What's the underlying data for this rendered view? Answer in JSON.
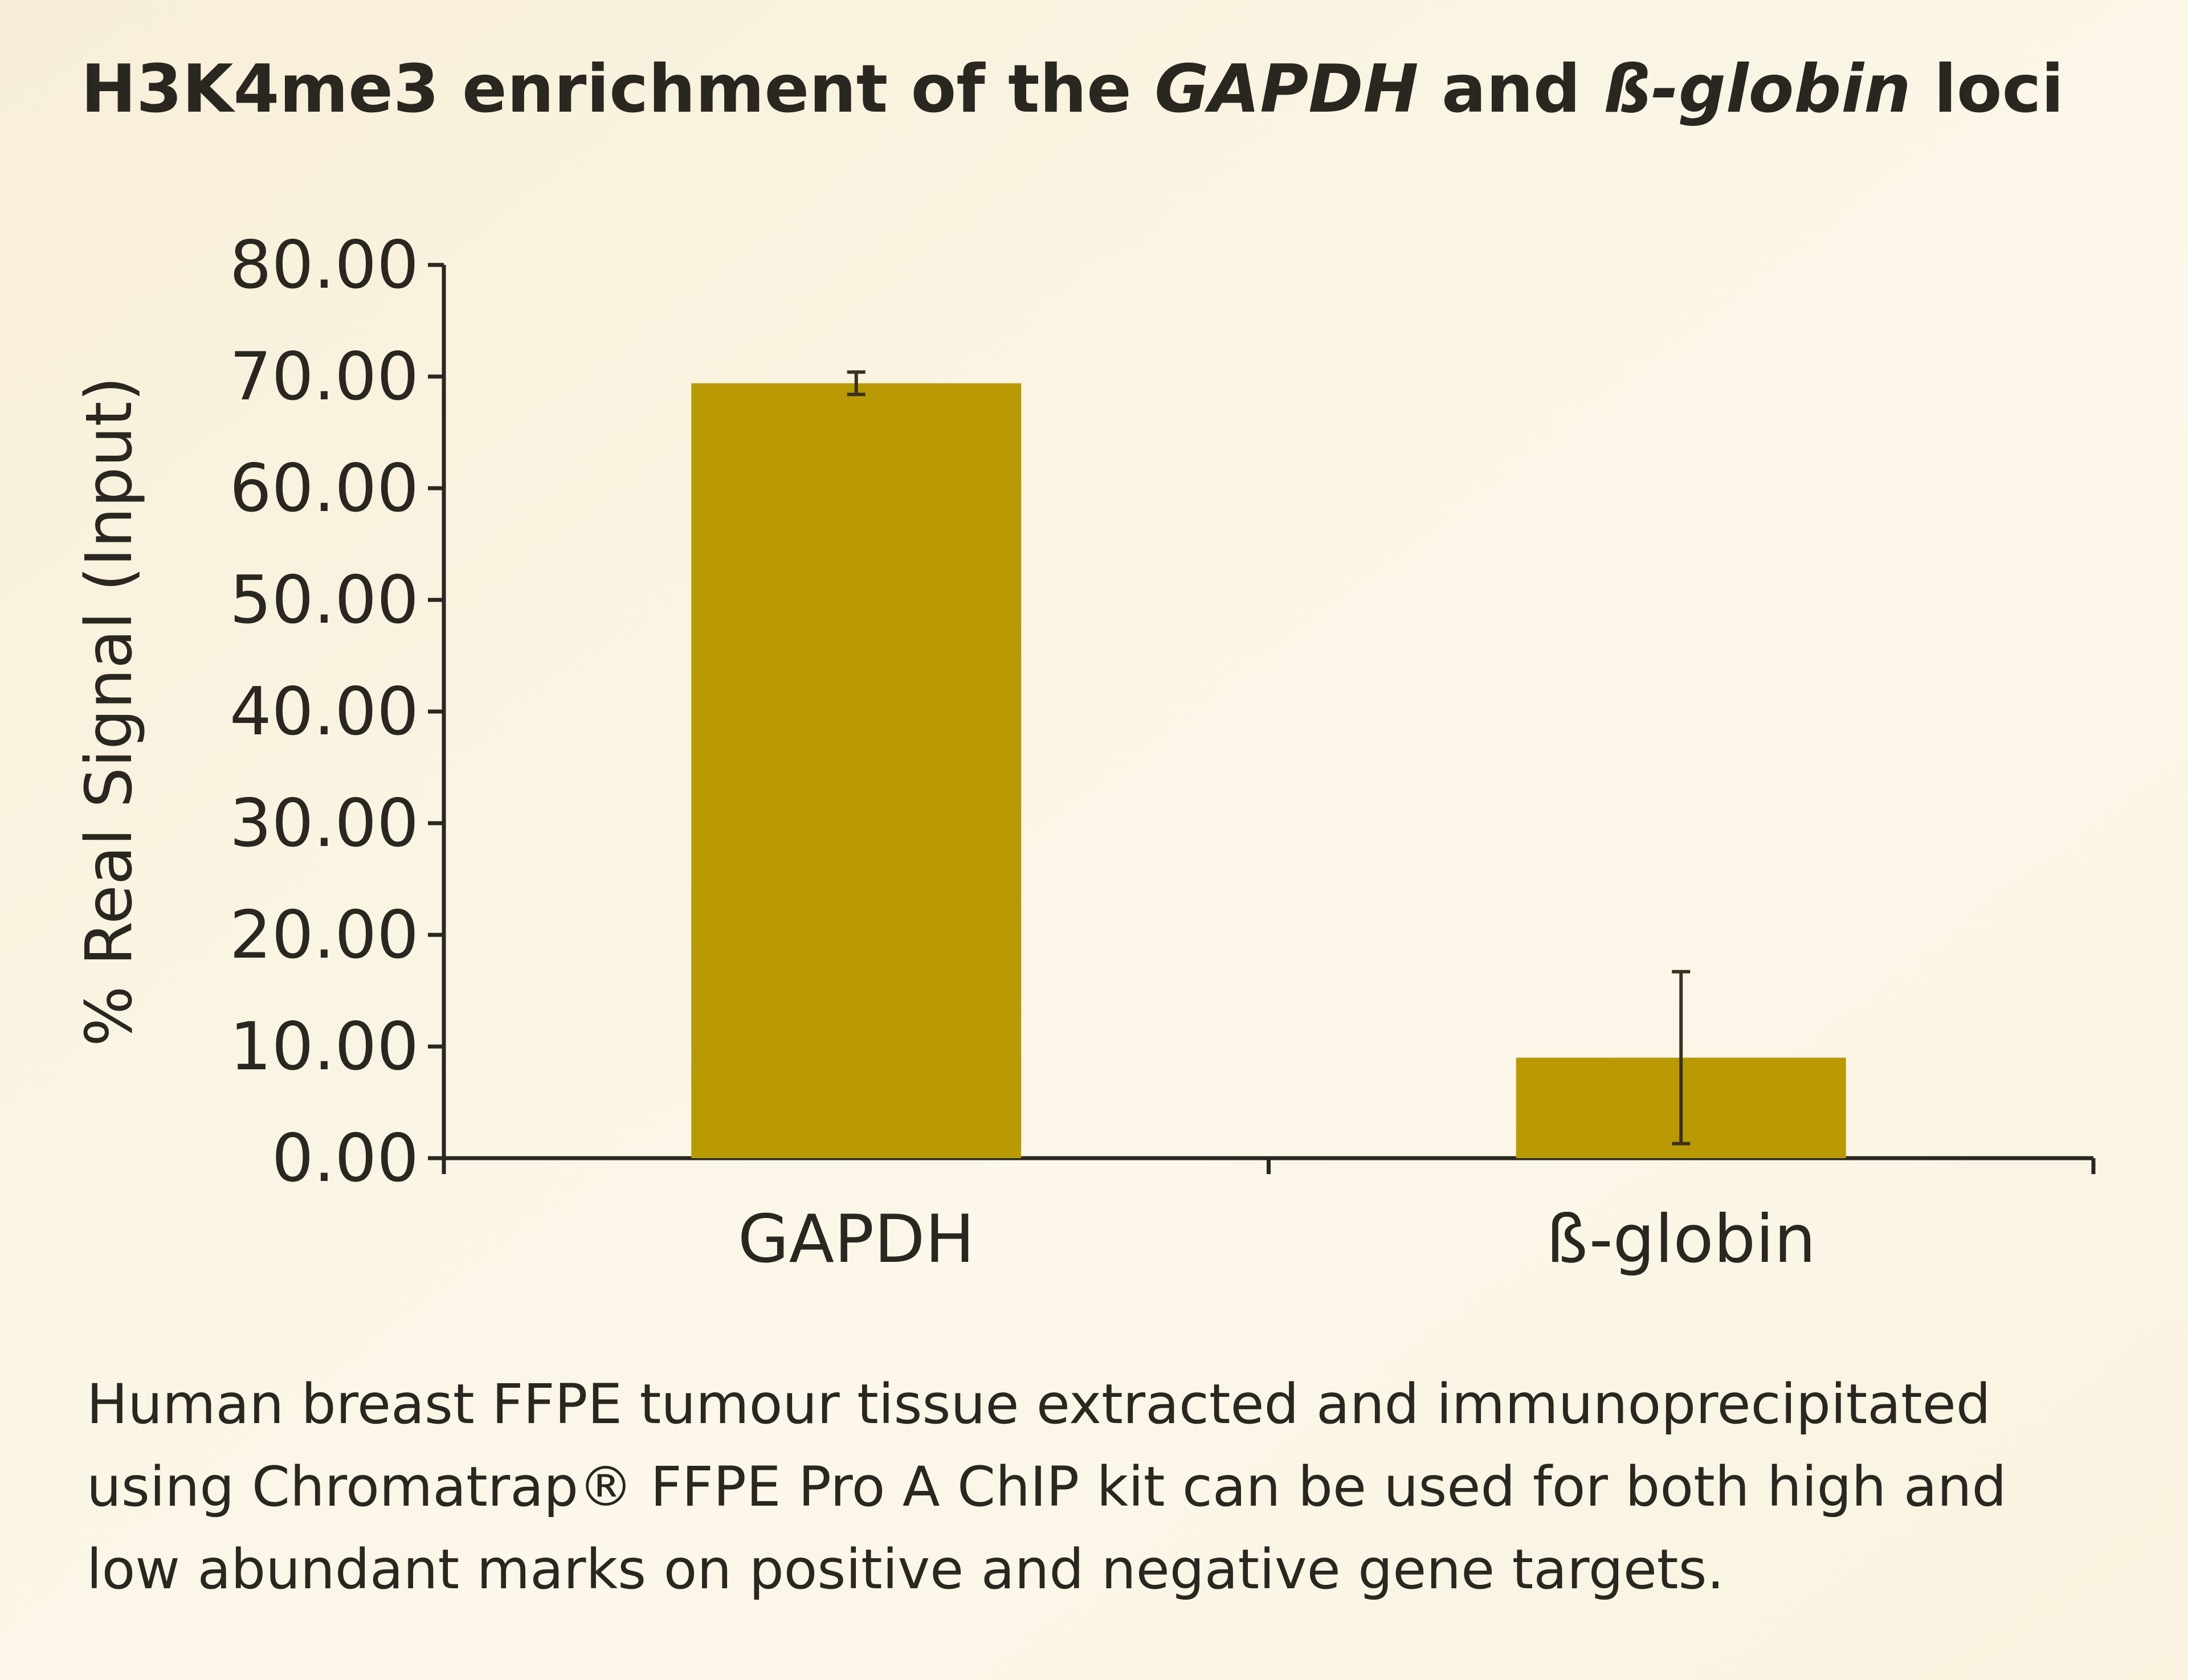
{
  "chart_data": {
    "type": "bar",
    "title": [
      "H3K4me3 enrichment of the ",
      "GAPDH",
      " and ",
      "ß-globin",
      " loci"
    ],
    "y_label": "% Real Signal (Input)",
    "categories": [
      "GAPDH",
      "ß-globin"
    ],
    "values": [
      69.4,
      9.0
    ],
    "errors": [
      1.0,
      7.7
    ],
    "color": "#b99a05",
    "ylim": [
      0,
      80
    ],
    "yticks": [
      {
        "value": 0,
        "label": "0.00"
      },
      {
        "value": 10,
        "label": "10.00"
      },
      {
        "value": 20,
        "label": "20.00"
      },
      {
        "value": 30,
        "label": "30.00"
      },
      {
        "value": 40,
        "label": "40.00"
      },
      {
        "value": 50,
        "label": "50.00"
      },
      {
        "value": 60,
        "label": "60.00"
      },
      {
        "value": 70,
        "label": "70.00"
      },
      {
        "value": 80,
        "label": "80.00"
      }
    ],
    "caption": [
      "Human breast FFPE tumour tissue extracted and immunoprecipitated",
      "using Chromatrap® FFPE Pro A ChIP kit can be used for both high and",
      "low abundant marks on positive and negative gene targets."
    ]
  }
}
